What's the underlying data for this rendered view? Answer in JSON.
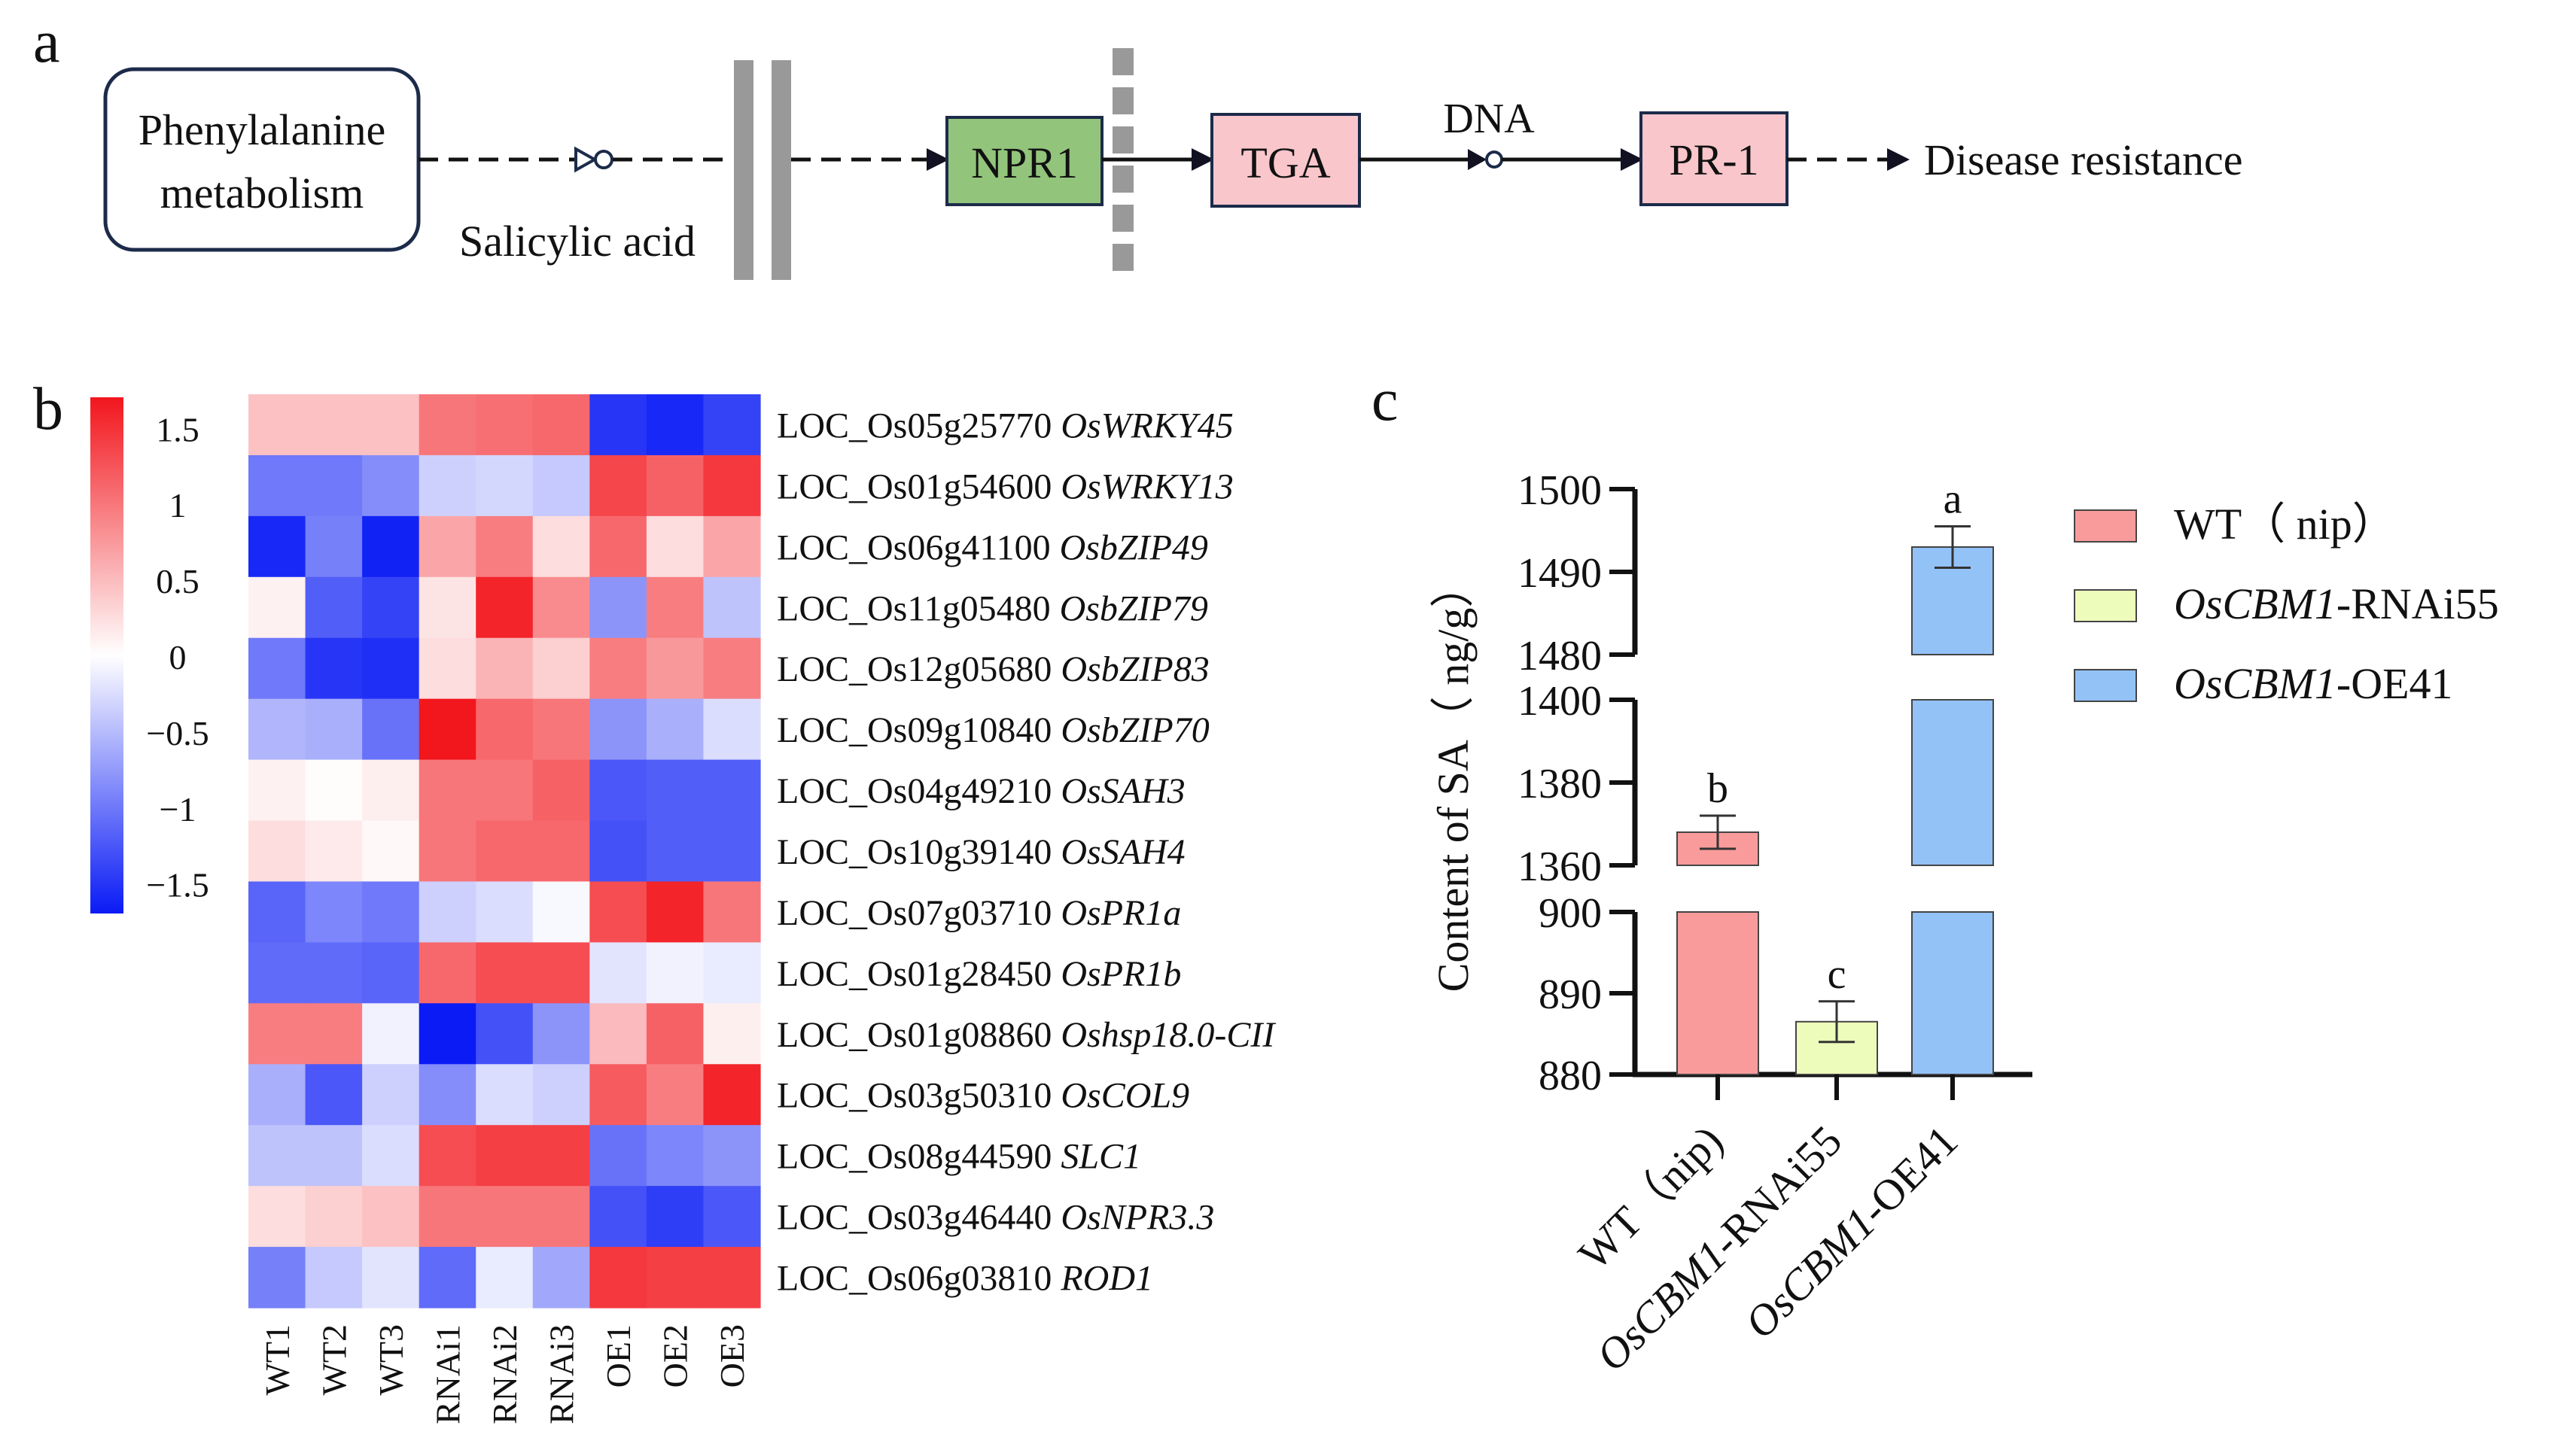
{
  "panel_labels": {
    "a": "a",
    "b": "b",
    "c": "c"
  },
  "pathway": {
    "boxes": {
      "phenylalanine_line1": "Phenylalanine",
      "phenylalanine_line2": "metabolism",
      "npr1": "NPR1",
      "tga": "TGA",
      "pr1": "PR-1"
    },
    "labels": {
      "salicylic_acid": "Salicylic acid",
      "dna": "DNA",
      "disease_resistance": "Disease resistance"
    },
    "colors": {
      "npr1": "#92c47b",
      "tga": "#f9c6cc",
      "pr1": "#f9c6cc",
      "bars": "#999999"
    }
  },
  "chart_data": [
    {
      "type": "heatmap",
      "title": "",
      "columns": [
        "WT1",
        "WT2",
        "WT3",
        "RNAi1",
        "RNAi2",
        "RNAi3",
        "OE1",
        "OE2",
        "OE3"
      ],
      "rows": [
        {
          "locus": "LOC_Os05g25770",
          "gene": "OsWRKY45",
          "values": [
            0.45,
            0.45,
            0.45,
            1.0,
            1.05,
            1.1,
            -1.5,
            -1.6,
            -1.4
          ]
        },
        {
          "locus": "LOC_Os01g54600",
          "gene": "OsWRKY13",
          "values": [
            -1.0,
            -1.0,
            -0.85,
            -0.35,
            -0.3,
            -0.4,
            1.35,
            1.15,
            1.45
          ]
        },
        {
          "locus": "LOC_Os06g41100",
          "gene": "OsbZIP49",
          "values": [
            -1.6,
            -0.95,
            -1.65,
            0.65,
            0.95,
            0.25,
            1.1,
            0.25,
            0.65
          ]
        },
        {
          "locus": "LOC_Os11g05480",
          "gene": "OsbZIP79",
          "values": [
            0.1,
            -1.2,
            -1.4,
            0.2,
            1.6,
            0.85,
            -0.8,
            0.95,
            -0.45
          ]
        },
        {
          "locus": "LOC_Os12g05680",
          "gene": "OsbZIP83",
          "values": [
            -1.0,
            -1.5,
            -1.55,
            0.25,
            0.55,
            0.35,
            0.95,
            0.75,
            0.95
          ]
        },
        {
          "locus": "LOC_Os09g10840",
          "gene": "OsbZIP70",
          "values": [
            -0.55,
            -0.6,
            -1.05,
            1.75,
            1.1,
            1.0,
            -0.8,
            -0.6,
            -0.25
          ]
        },
        {
          "locus": "LOC_Os04g49210",
          "gene": "OsSAH3",
          "values": [
            0.1,
            0.02,
            0.12,
            1.0,
            1.0,
            1.15,
            -1.25,
            -1.2,
            -1.2
          ]
        },
        {
          "locus": "LOC_Os10g39140",
          "gene": "OsSAH4",
          "values": [
            0.25,
            0.15,
            0.05,
            1.0,
            1.1,
            1.1,
            -1.3,
            -1.2,
            -1.2
          ]
        },
        {
          "locus": "LOC_Os07g03710",
          "gene": "OsPR1a",
          "values": [
            -1.15,
            -0.9,
            -1.0,
            -0.35,
            -0.25,
            -0.05,
            1.3,
            1.6,
            1.0
          ]
        },
        {
          "locus": "LOC_Os01g28450",
          "gene": "OsPR1b",
          "values": [
            -1.1,
            -1.1,
            -1.15,
            1.1,
            1.3,
            1.3,
            -0.2,
            -0.1,
            -0.15
          ]
        },
        {
          "locus": "LOC_Os01g08860",
          "gene": "Oshsp18.0-CII",
          "values": [
            0.95,
            0.95,
            -0.1,
            -1.7,
            -1.3,
            -0.8,
            0.5,
            1.15,
            0.12
          ]
        },
        {
          "locus": "LOC_Os03g50310",
          "gene": "OsCOL9",
          "values": [
            -0.6,
            -1.25,
            -0.35,
            -0.85,
            -0.25,
            -0.35,
            1.2,
            0.95,
            1.6
          ]
        },
        {
          "locus": "LOC_Os08g44590",
          "gene": "SLC1",
          "values": [
            -0.45,
            -0.45,
            -0.25,
            1.3,
            1.4,
            1.4,
            -1.05,
            -0.9,
            -0.8
          ]
        },
        {
          "locus": "LOC_Os03g46440",
          "gene": "OsNPR3.3",
          "values": [
            0.25,
            0.35,
            0.45,
            1.0,
            1.0,
            1.0,
            -1.3,
            -1.45,
            -1.25
          ]
        },
        {
          "locus": "LOC_Os06g03810",
          "gene": "ROD1",
          "values": [
            -0.95,
            -0.4,
            -0.2,
            -1.1,
            -0.15,
            -0.65,
            1.45,
            1.4,
            1.4
          ]
        }
      ],
      "color_scale": {
        "min": -1.7,
        "max": 1.7,
        "ticks": [
          1.5,
          1,
          0.5,
          0,
          -0.5,
          -1,
          -1.5
        ],
        "tick_labels": [
          "1.5",
          "1",
          "0.5",
          "0",
          "−0.5",
          "−1",
          "−1.5"
        ],
        "low_color": "#0a1bf5",
        "mid_color": "#ffffff",
        "high_color": "#f2161d"
      }
    },
    {
      "type": "bar",
      "ylabel": "Content of SA（ ng/g）",
      "xlabel": "",
      "categories": [
        {
          "italic": "",
          "rest": "WT（nip)"
        },
        {
          "italic": "OsCBM1",
          "rest": "-RNAi55"
        },
        {
          "italic": "OsCBM1",
          "rest": "-OE41"
        }
      ],
      "values": [
        1368,
        886.5,
        1493
      ],
      "errors": [
        4,
        2.5,
        2.5
      ],
      "letters": [
        "b",
        "c",
        "a"
      ],
      "colors": [
        "#f99b9b",
        "#eefcbb",
        "#93c2f7"
      ],
      "broken_axis": {
        "segments": [
          [
            880,
            900
          ],
          [
            1360,
            1400
          ],
          [
            1480,
            1500
          ]
        ],
        "tick_values": [
          880,
          890,
          900,
          1360,
          1380,
          1400,
          1480,
          1490,
          1500
        ],
        "tick_labels": [
          "880",
          "890",
          "900",
          "1360",
          "1380",
          "1400",
          "1480",
          "1490",
          "1500"
        ]
      },
      "legend": {
        "position": "right",
        "entries": [
          {
            "italic": "",
            "rest": "WT（ nip）"
          },
          {
            "italic": "OsCBM1",
            "rest": "-RNAi55"
          },
          {
            "italic": "OsCBM1",
            "rest": "-OE41"
          }
        ]
      }
    }
  ]
}
